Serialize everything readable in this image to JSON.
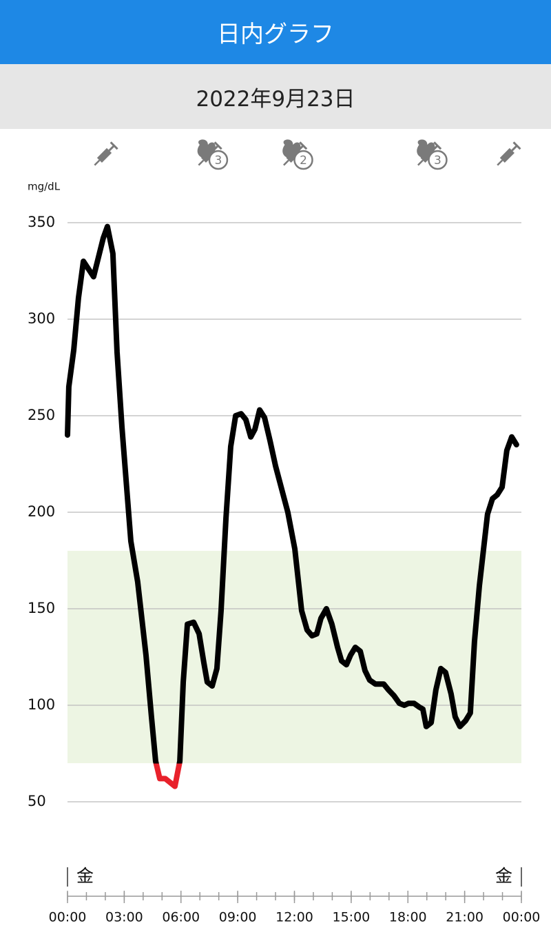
{
  "header": {
    "title": "日内グラフ"
  },
  "date": "2022年9月23日",
  "events": [
    {
      "kind": "insulin",
      "time": 2.0
    },
    {
      "kind": "meal",
      "count": 3,
      "time": 7.5
    },
    {
      "kind": "meal",
      "count": 2,
      "time": 12.0
    },
    {
      "kind": "meal",
      "count": 3,
      "time": 19.1
    },
    {
      "kind": "insulin",
      "time": 23.3
    }
  ],
  "chart_data": {
    "type": "line",
    "y_label": "mg/dL",
    "x": [
      0,
      0.07,
      0.33,
      0.58,
      0.84,
      1.38,
      1.89,
      2.11,
      2.4,
      2.62,
      2.88,
      3.35,
      3.71,
      4.15,
      4.44,
      4.66,
      4.88,
      5.17,
      5.68,
      5.94,
      6.12,
      6.34,
      6.67,
      6.96,
      7.21,
      7.39,
      7.65,
      7.9,
      8.12,
      8.38,
      8.63,
      8.89,
      9.18,
      9.43,
      9.69,
      9.91,
      10.16,
      10.42,
      10.71,
      11.0,
      11.65,
      12.02,
      12.38,
      12.67,
      12.93,
      13.18,
      13.4,
      13.69,
      13.98,
      14.28,
      14.49,
      14.75,
      14.97,
      15.22,
      15.48,
      15.73,
      15.98,
      16.28,
      16.72,
      16.97,
      17.26,
      17.55,
      17.81,
      18.03,
      18.32,
      18.61,
      18.79,
      18.97,
      19.23,
      19.48,
      19.74,
      19.99,
      20.28,
      20.5,
      20.75,
      21.05,
      21.3,
      21.52,
      21.78,
      22.21,
      22.47,
      22.72,
      22.98,
      23.23,
      23.49,
      23.74
    ],
    "values": [
      240,
      265,
      284,
      311,
      330,
      322,
      342,
      348,
      334,
      283,
      244,
      185,
      164,
      126,
      94,
      71,
      62,
      62,
      58,
      71,
      112,
      142,
      143,
      137,
      122,
      112,
      110,
      119,
      149,
      197,
      234,
      250,
      251,
      248,
      239,
      243,
      253,
      249,
      237,
      224,
      200,
      181,
      149,
      139,
      136,
      137,
      145,
      150,
      142,
      130,
      123,
      121,
      126,
      130,
      128,
      118,
      113,
      111,
      111,
      108,
      105,
      101,
      100,
      101,
      101,
      99,
      98,
      89,
      91,
      108,
      119,
      117,
      106,
      94,
      89,
      92,
      96,
      133,
      162,
      199,
      207,
      209,
      213,
      232,
      239,
      235
    ],
    "color": "#000000",
    "low_color": "#e8212b",
    "target_range": [
      70,
      180
    ],
    "target_color": "#edf5e3",
    "xlim": [
      0,
      24
    ],
    "xticks": [
      {
        "value": 0,
        "label": "00:00"
      },
      {
        "value": 3,
        "label": "03:00"
      },
      {
        "value": 6,
        "label": "06:00"
      },
      {
        "value": 9,
        "label": "09:00"
      },
      {
        "value": 12,
        "label": "12:00"
      },
      {
        "value": 15,
        "label": "15:00"
      },
      {
        "value": 18,
        "label": "18:00"
      },
      {
        "value": 21,
        "label": "21:00"
      },
      {
        "value": 24,
        "label": "00:00"
      }
    ],
    "minor_xticks": [
      0,
      1,
      2,
      3,
      4,
      5,
      6,
      7,
      8,
      9,
      10,
      11,
      12,
      13,
      14,
      15,
      16,
      17,
      18,
      19,
      20,
      21,
      22,
      23,
      24
    ],
    "ylim": [
      50,
      350
    ],
    "yticks": [
      50,
      100,
      150,
      200,
      250,
      300,
      350
    ],
    "grid": true,
    "start_day_label": "金",
    "end_day_label": "金"
  }
}
